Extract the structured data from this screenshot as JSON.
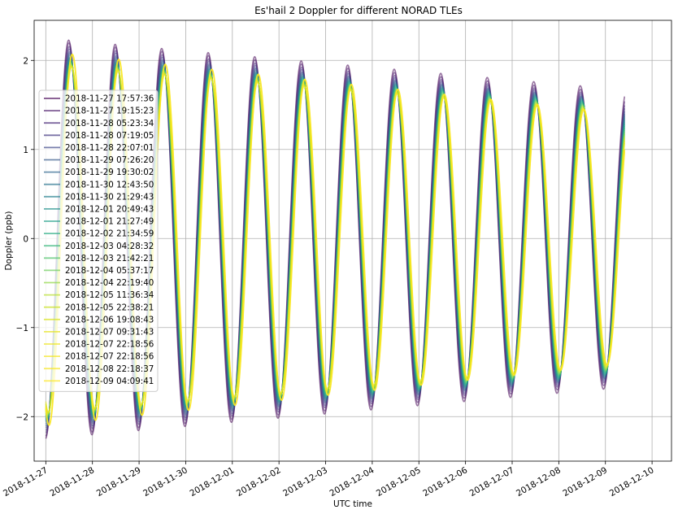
{
  "chart_data": {
    "type": "line",
    "title": "Es'hail 2 Doppler for different NORAD TLEs",
    "xlabel": "UTC time",
    "ylabel": "Doppler (ppb)",
    "x_ticks": [
      "2018-11-27",
      "2018-11-28",
      "2018-11-29",
      "2018-11-30",
      "2018-12-01",
      "2018-12-02",
      "2018-12-03",
      "2018-12-04",
      "2018-12-05",
      "2018-12-06",
      "2018-12-07",
      "2018-12-08",
      "2018-12-09",
      "2018-12-10"
    ],
    "y_ticks": [
      "−2",
      "−1",
      "0",
      "1",
      "2"
    ],
    "y_tick_values": [
      -2,
      -1,
      0,
      1,
      2
    ],
    "xlim": [
      "2018-11-26T18:00",
      "2018-12-10T10:00"
    ],
    "ylim": [
      -2.5,
      2.45
    ],
    "grid": true,
    "legend_position": "center-left",
    "line_alpha": 0.55,
    "x_start": "2018-11-27T00:00",
    "x_end": "2018-12-09T10:00",
    "period_days": 0.99727,
    "series": [
      {
        "name": "2018-11-27 17:57:36",
        "color": "#440154",
        "amplitude_start": 2.25,
        "amplitude_end": 1.67,
        "phase_days": 0.0
      },
      {
        "name": "2018-11-27 19:15:23",
        "color": "#481668",
        "amplitude_start": 2.22,
        "amplitude_end": 1.63,
        "phase_days": 0.005
      },
      {
        "name": "2018-11-28 05:23:34",
        "color": "#482878",
        "amplitude_start": 2.18,
        "amplitude_end": 1.6,
        "phase_days": 0.01
      },
      {
        "name": "2018-11-28 07:19:05",
        "color": "#443983",
        "amplitude_start": 2.15,
        "amplitude_end": 1.58,
        "phase_days": 0.014
      },
      {
        "name": "2018-11-28 22:07:01",
        "color": "#3e4989",
        "amplitude_start": 2.12,
        "amplitude_end": 1.56,
        "phase_days": 0.018
      },
      {
        "name": "2018-11-29 07:26:20",
        "color": "#375a8c",
        "amplitude_start": 2.1,
        "amplitude_end": 1.55,
        "phase_days": 0.022
      },
      {
        "name": "2018-11-29 19:30:02",
        "color": "#31688e",
        "amplitude_start": 2.08,
        "amplitude_end": 1.54,
        "phase_days": 0.025
      },
      {
        "name": "2018-11-30 12:43:50",
        "color": "#2b758e",
        "amplitude_start": 2.06,
        "amplitude_end": 1.53,
        "phase_days": 0.028
      },
      {
        "name": "2018-11-30 21:29:43",
        "color": "#26828e",
        "amplitude_start": 2.05,
        "amplitude_end": 1.52,
        "phase_days": 0.031
      },
      {
        "name": "2018-12-01 20:49:43",
        "color": "#21918c",
        "amplitude_start": 2.04,
        "amplitude_end": 1.51,
        "phase_days": 0.034
      },
      {
        "name": "2018-12-01 21:27:49",
        "color": "#1f9e89",
        "amplitude_start": 2.03,
        "amplitude_end": 1.5,
        "phase_days": 0.037
      },
      {
        "name": "2018-12-02 21:34:59",
        "color": "#25ab82",
        "amplitude_start": 2.02,
        "amplitude_end": 1.49,
        "phase_days": 0.04
      },
      {
        "name": "2018-12-03 04:28:32",
        "color": "#35b779",
        "amplitude_start": 2.01,
        "amplitude_end": 1.48,
        "phase_days": 0.043
      },
      {
        "name": "2018-12-03 21:42:21",
        "color": "#4ec36b",
        "amplitude_start": 2.0,
        "amplitude_end": 1.47,
        "phase_days": 0.046
      },
      {
        "name": "2018-12-04 05:37:17",
        "color": "#6ccd5a",
        "amplitude_start": 1.99,
        "amplitude_end": 1.46,
        "phase_days": 0.049
      },
      {
        "name": "2018-12-04 22:19:40",
        "color": "#8fd744",
        "amplitude_start": 1.98,
        "amplitude_end": 1.45,
        "phase_days": 0.052
      },
      {
        "name": "2018-12-05 11:36:34",
        "color": "#b5de2b",
        "amplitude_start": 1.97,
        "amplitude_end": 1.44,
        "phase_days": 0.055
      },
      {
        "name": "2018-12-05 22:38:21",
        "color": "#c8e020",
        "amplitude_start": 1.96,
        "amplitude_end": 1.43,
        "phase_days": 0.058
      },
      {
        "name": "2018-12-06 19:08:43",
        "color": "#d8e219",
        "amplitude_start": 1.96,
        "amplitude_end": 1.42,
        "phase_days": 0.061
      },
      {
        "name": "2018-12-07 09:31:43",
        "color": "#e5e419",
        "amplitude_start": 1.95,
        "amplitude_end": 1.41,
        "phase_days": 0.064
      },
      {
        "name": "2018-12-07 22:18:56",
        "color": "#eee51c",
        "amplitude_start": 2.1,
        "amplitude_end": 1.4,
        "phase_days": 0.075
      },
      {
        "name": "2018-12-07 22:18:56",
        "color": "#f3e61e",
        "amplitude_start": 2.1,
        "amplitude_end": 1.4,
        "phase_days": 0.075
      },
      {
        "name": "2018-12-08 22:18:37",
        "color": "#f8e621",
        "amplitude_start": 2.1,
        "amplitude_end": 1.4,
        "phase_days": 0.078
      },
      {
        "name": "2018-12-09 04:09:41",
        "color": "#fde725",
        "amplitude_start": 2.1,
        "amplitude_end": 1.4,
        "phase_days": 0.08
      }
    ]
  }
}
